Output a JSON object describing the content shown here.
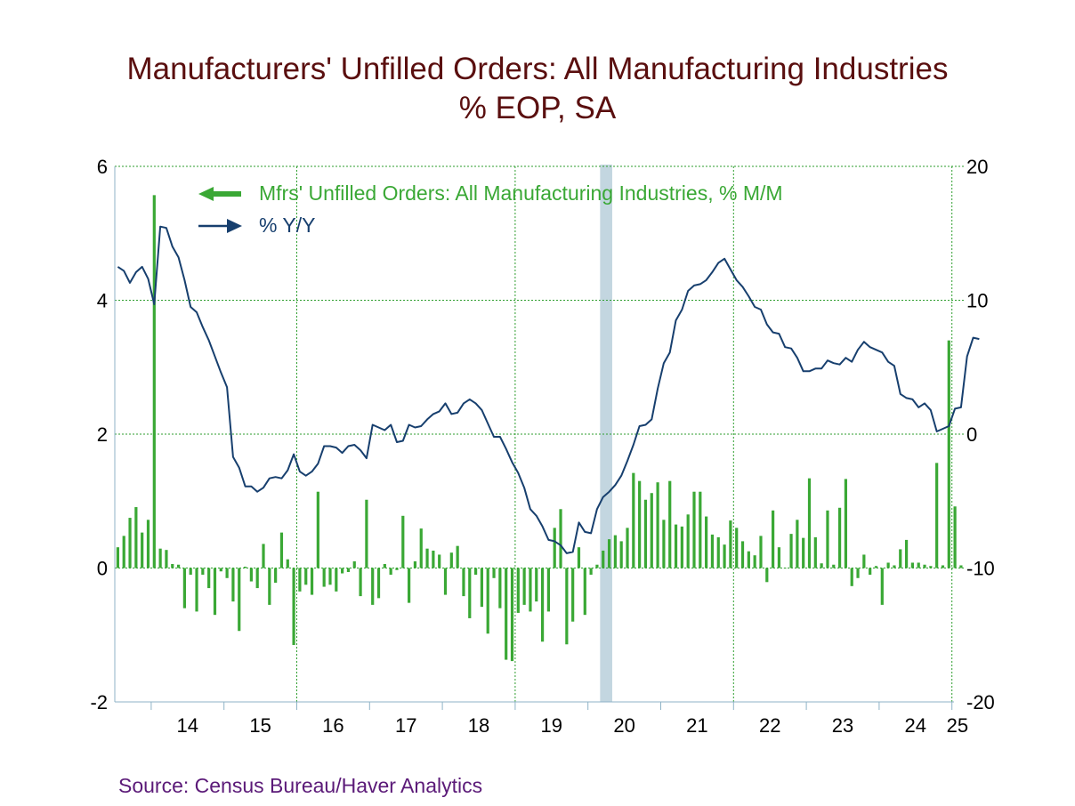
{
  "header": {
    "title": "Manufacturers' Unfilled Orders: All Manufacturing Industries",
    "subtitle": "%   EOP, SA"
  },
  "source": "Source:  Census Bureau/Haver Analytics",
  "colors": {
    "bars": "#3aa835",
    "line": "#173f6e",
    "recession": "#c3d6e0",
    "grid": "#2e9e2e",
    "title": "#5a0f0f",
    "source": "#5b1a78"
  },
  "chart_data": {
    "type": "bar",
    "start": "2013-07",
    "frequency": "monthly",
    "x_tick_labels": [
      "14",
      "15",
      "16",
      "17",
      "18",
      "19",
      "20",
      "21",
      "22",
      "23",
      "24",
      "25"
    ],
    "y_left": {
      "range": [
        -2,
        6
      ],
      "ticks": [
        "-2",
        "0",
        "2",
        "4",
        "6"
      ]
    },
    "y_right": {
      "range": [
        -20,
        20
      ],
      "ticks": [
        "-20",
        "-10",
        "0",
        "10",
        "20"
      ]
    },
    "grid": true,
    "legend_position": "top-left",
    "recession": {
      "start": "2020-03",
      "end": "2020-04"
    },
    "series": [
      {
        "name": "Mfrs' Unfilled Orders: All Manufacturing Industries, % M/M",
        "kind": "bar",
        "axis": "left",
        "values": [
          0.31,
          0.48,
          0.75,
          0.91,
          0.53,
          0.72,
          5.57,
          0.29,
          0.27,
          0.06,
          0.05,
          -0.6,
          -0.1,
          -0.65,
          -0.1,
          -0.3,
          -0.7,
          -0.05,
          -0.15,
          -0.5,
          -0.94,
          0.02,
          -0.2,
          -0.3,
          0.36,
          -0.55,
          -0.22,
          0.53,
          0.13,
          -1.15,
          -0.35,
          -0.25,
          -0.4,
          1.14,
          -0.28,
          -0.25,
          -0.35,
          -0.08,
          -0.06,
          0.1,
          -0.42,
          1.02,
          -0.55,
          -0.45,
          0.06,
          -0.1,
          -0.03,
          0.78,
          -0.52,
          0.1,
          0.59,
          0.29,
          0.26,
          0.2,
          -0.4,
          0.23,
          0.33,
          -0.42,
          -0.75,
          -0.1,
          -0.58,
          -0.98,
          -0.15,
          -0.6,
          -1.37,
          -1.39,
          -0.67,
          -0.55,
          -0.65,
          -0.5,
          -1.1,
          -0.65,
          0.6,
          0.88,
          -1.14,
          -0.8,
          0.31,
          -0.7,
          -0.1,
          0.05,
          0.26,
          0.43,
          0.49,
          0.4,
          0.6,
          1.42,
          1.3,
          1.02,
          1.12,
          1.28,
          0.72,
          1.3,
          0.65,
          0.62,
          0.8,
          1.14,
          1.14,
          0.77,
          0.5,
          0.46,
          0.35,
          0.71,
          0.6,
          0.4,
          0.25,
          0.19,
          0.48,
          -0.21,
          0.86,
          0.31,
          0.0,
          0.51,
          0.72,
          0.45,
          1.34,
          0.46,
          0.07,
          0.86,
          0.05,
          0.9,
          1.33,
          -0.27,
          -0.15,
          0.2,
          -0.1,
          0.03,
          -0.55,
          0.08,
          0.04,
          0.28,
          0.42,
          0.08,
          0.08,
          0.05,
          0.03,
          1.57,
          0.04,
          3.4,
          0.92,
          0.04
        ]
      },
      {
        "name": "% Y/Y",
        "kind": "line",
        "axis": "right",
        "values": [
          12.5,
          12.2,
          11.3,
          12.1,
          12.5,
          11.6,
          9.7,
          15.5,
          15.4,
          14.0,
          13.2,
          11.5,
          9.5,
          9.1,
          8.0,
          7.0,
          5.8,
          4.6,
          3.5,
          -1.7,
          -2.5,
          -3.9,
          -3.9,
          -4.3,
          -4.0,
          -3.3,
          -3.2,
          -3.3,
          -2.7,
          -1.5,
          -2.8,
          -3.1,
          -2.8,
          -2.2,
          -0.9,
          -0.9,
          -1.0,
          -1.4,
          -0.9,
          -0.8,
          -1.2,
          -1.8,
          0.7,
          0.5,
          0.3,
          0.7,
          -0.6,
          -0.5,
          0.7,
          0.5,
          0.6,
          1.1,
          1.5,
          1.7,
          2.3,
          1.5,
          1.6,
          2.3,
          2.6,
          2.3,
          1.8,
          0.8,
          -0.2,
          -0.2,
          -1.1,
          -2.1,
          -2.9,
          -4.0,
          -5.6,
          -6.1,
          -6.9,
          -7.9,
          -8.0,
          -8.3,
          -8.9,
          -8.8,
          -6.6,
          -7.3,
          -7.4,
          -5.6,
          -4.7,
          -4.3,
          -3.8,
          -3.1,
          -2.0,
          -0.8,
          0.6,
          0.7,
          1.1,
          3.4,
          5.3,
          6.1,
          8.5,
          9.3,
          10.7,
          11.1,
          11.2,
          11.5,
          12.1,
          12.8,
          13.1,
          12.3,
          11.5,
          11.0,
          10.3,
          9.5,
          9.3,
          8.2,
          7.6,
          7.5,
          6.5,
          6.4,
          5.7,
          4.7,
          4.7,
          4.9,
          4.9,
          5.5,
          5.3,
          5.2,
          5.7,
          5.4,
          6.3,
          6.9,
          6.5,
          6.3,
          6.1,
          5.4,
          5.1,
          3.0,
          2.7,
          2.6,
          2.0,
          2.3,
          1.8,
          0.2,
          0.4,
          0.6,
          1.9,
          2.0,
          5.8,
          7.2,
          7.1
        ]
      }
    ]
  }
}
